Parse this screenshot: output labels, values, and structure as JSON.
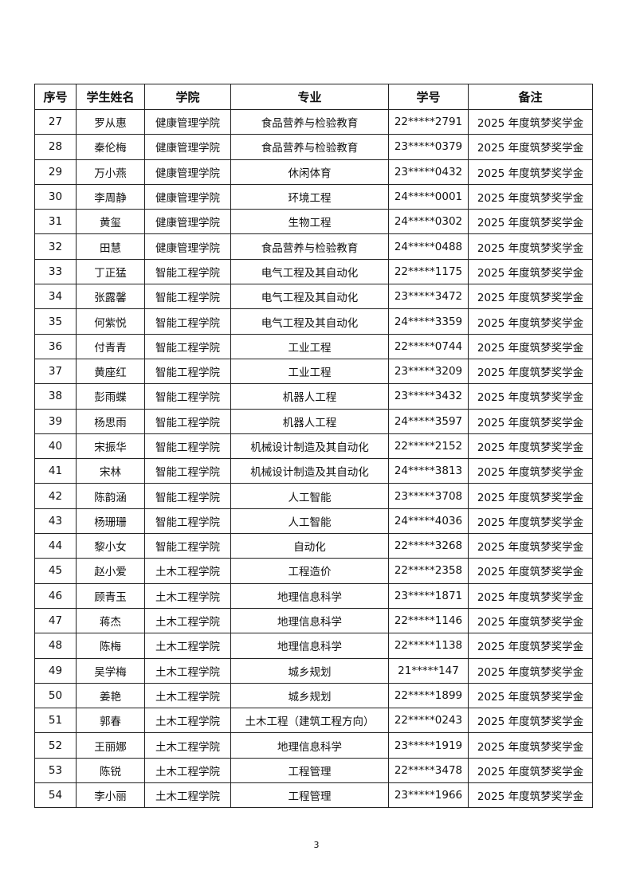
{
  "table": {
    "header": [
      "序号",
      "学生姓名",
      "学院",
      "专业",
      "学号",
      "备注"
    ],
    "rows": [
      [
        "27",
        "罗从惠",
        "健康管理学院",
        "食品营养与检验教育",
        "22*****2791",
        "2025 年度筑梦奖学金"
      ],
      [
        "28",
        "秦伦梅",
        "健康管理学院",
        "食品营养与检验教育",
        "23*****0379",
        "2025 年度筑梦奖学金"
      ],
      [
        "29",
        "万小燕",
        "健康管理学院",
        "休闲体育",
        "23*****0432",
        "2025 年度筑梦奖学金"
      ],
      [
        "30",
        "李周静",
        "健康管理学院",
        "环境工程",
        "24*****0001",
        "2025 年度筑梦奖学金"
      ],
      [
        "31",
        "黄玺",
        "健康管理学院",
        "生物工程",
        "24*****0302",
        "2025 年度筑梦奖学金"
      ],
      [
        "32",
        "田慧",
        "健康管理学院",
        "食品营养与检验教育",
        "24*****0488",
        "2025 年度筑梦奖学金"
      ],
      [
        "33",
        "丁正猛",
        "智能工程学院",
        "电气工程及其自动化",
        "22*****1175",
        "2025 年度筑梦奖学金"
      ],
      [
        "34",
        "张露馨",
        "智能工程学院",
        "电气工程及其自动化",
        "23*****3472",
        "2025 年度筑梦奖学金"
      ],
      [
        "35",
        "何紫悦",
        "智能工程学院",
        "电气工程及其自动化",
        "24*****3359",
        "2025 年度筑梦奖学金"
      ],
      [
        "36",
        "付青青",
        "智能工程学院",
        "工业工程",
        "22*****0744",
        "2025 年度筑梦奖学金"
      ],
      [
        "37",
        "黄座红",
        "智能工程学院",
        "工业工程",
        "23*****3209",
        "2025 年度筑梦奖学金"
      ],
      [
        "38",
        "彭雨蝶",
        "智能工程学院",
        "机器人工程",
        "23*****3432",
        "2025 年度筑梦奖学金"
      ],
      [
        "39",
        "杨思雨",
        "智能工程学院",
        "机器人工程",
        "24*****3597",
        "2025 年度筑梦奖学金"
      ],
      [
        "40",
        "宋振华",
        "智能工程学院",
        "机械设计制造及其自动化",
        "22*****2152",
        "2025 年度筑梦奖学金"
      ],
      [
        "41",
        "宋林",
        "智能工程学院",
        "机械设计制造及其自动化",
        "24*****3813",
        "2025 年度筑梦奖学金"
      ],
      [
        "42",
        "陈韵涵",
        "智能工程学院",
        "人工智能",
        "23*****3708",
        "2025 年度筑梦奖学金"
      ],
      [
        "43",
        "杨珊珊",
        "智能工程学院",
        "人工智能",
        "24*****4036",
        "2025 年度筑梦奖学金"
      ],
      [
        "44",
        "黎小女",
        "智能工程学院",
        "自动化",
        "22*****3268",
        "2025 年度筑梦奖学金"
      ],
      [
        "45",
        "赵小爱",
        "土木工程学院",
        "工程造价",
        "22*****2358",
        "2025 年度筑梦奖学金"
      ],
      [
        "46",
        "顾青玉",
        "土木工程学院",
        "地理信息科学",
        "23*****1871",
        "2025 年度筑梦奖学金"
      ],
      [
        "47",
        "蒋杰",
        "土木工程学院",
        "地理信息科学",
        "22*****1146",
        "2025 年度筑梦奖学金"
      ],
      [
        "48",
        "陈梅",
        "土木工程学院",
        "地理信息科学",
        "22*****1138",
        "2025 年度筑梦奖学金"
      ],
      [
        "49",
        "吴学梅",
        "土木工程学院",
        "城乡规划",
        "21*****147",
        "2025 年度筑梦奖学金"
      ],
      [
        "50",
        "姜艳",
        "土木工程学院",
        "城乡规划",
        "22*****1899",
        "2025 年度筑梦奖学金"
      ],
      [
        "51",
        "郭春",
        "土木工程学院",
        "土木工程（建筑工程方向）",
        "22*****0243",
        "2025 年度筑梦奖学金"
      ],
      [
        "52",
        "王丽娜",
        "土木工程学院",
        "地理信息科学",
        "23*****1919",
        "2025 年度筑梦奖学金"
      ],
      [
        "53",
        "陈锐",
        "土木工程学院",
        "工程管理",
        "22*****3478",
        "2025 年度筑梦奖学金"
      ],
      [
        "54",
        "李小丽",
        "土木工程学院",
        "工程管理",
        "23*****1966",
        "2025 年度筑梦奖学金"
      ]
    ]
  },
  "page_number": "3"
}
